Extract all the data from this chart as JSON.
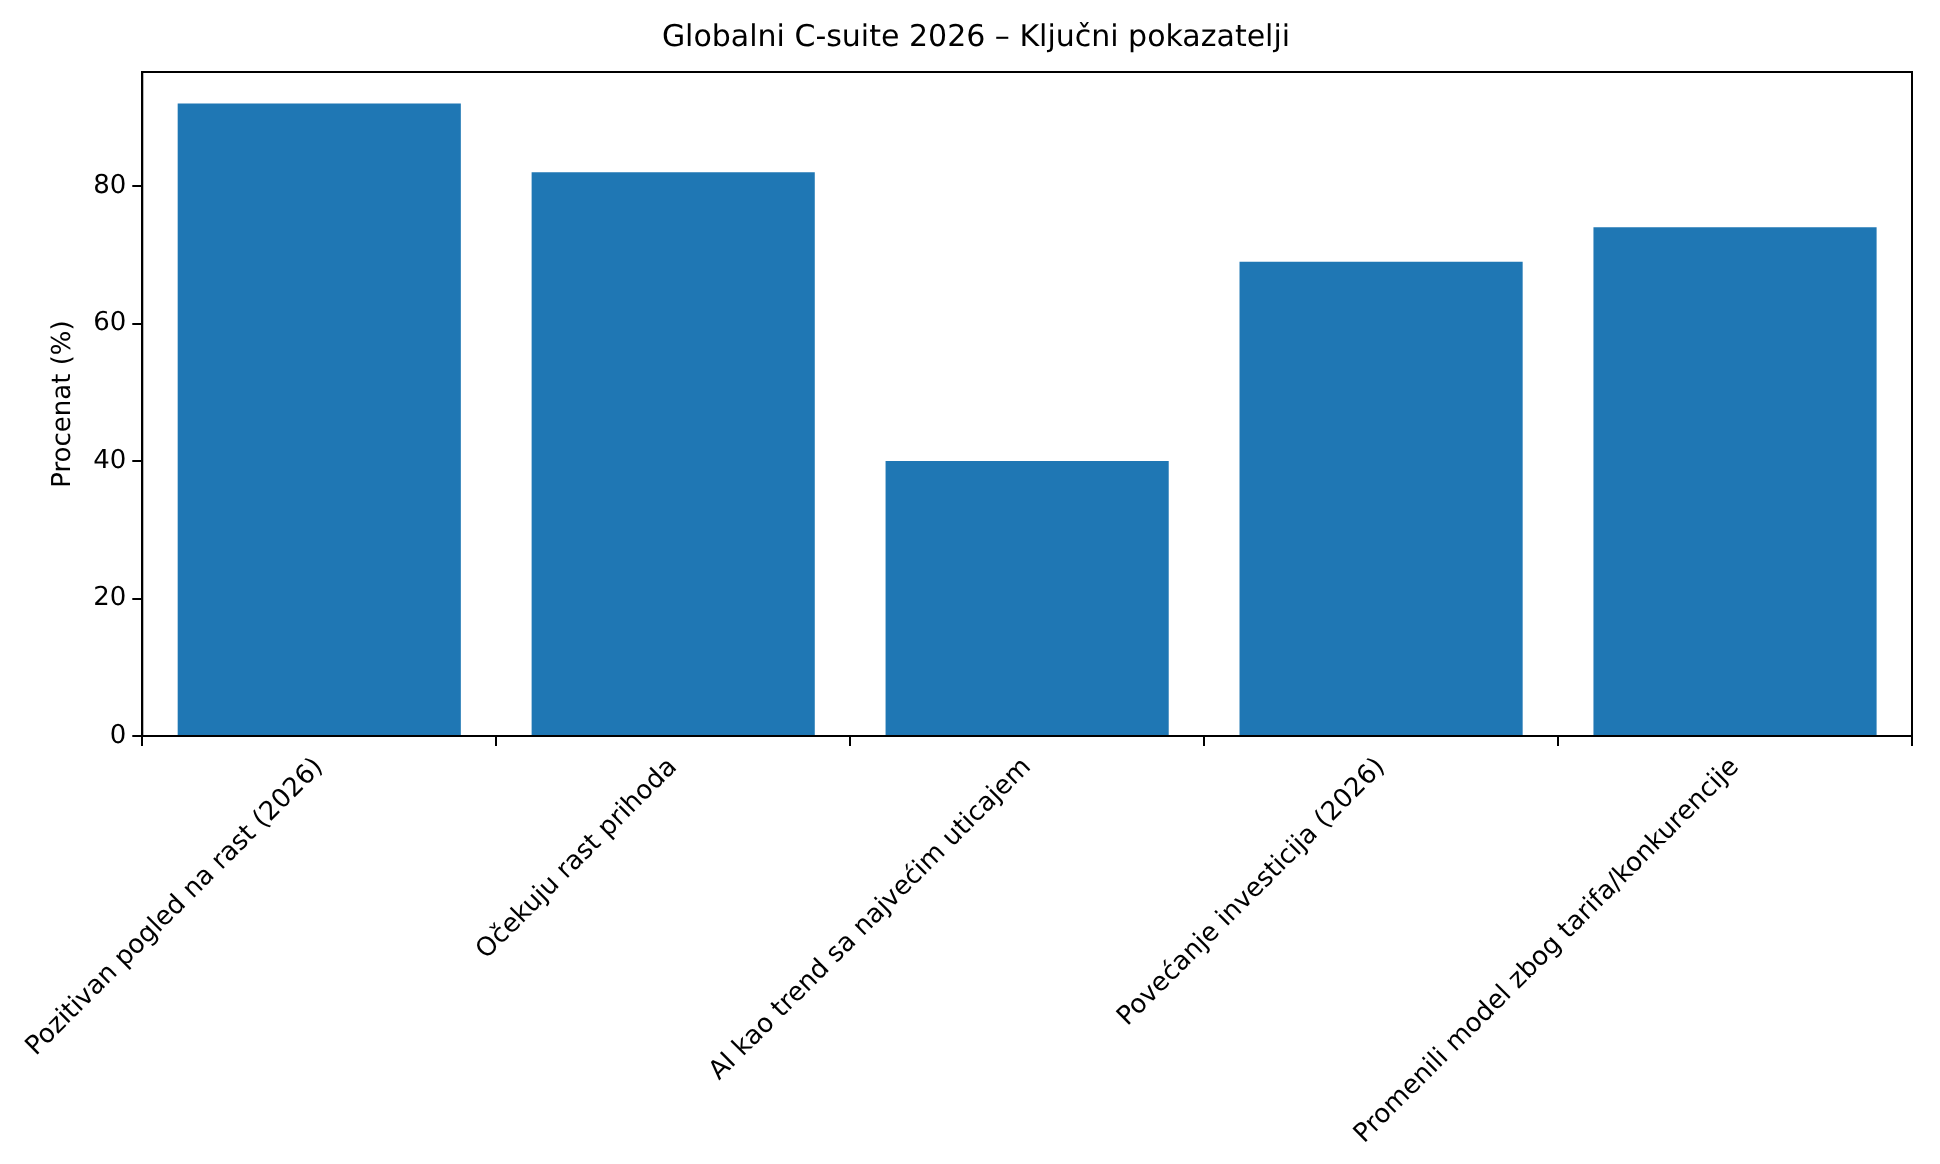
{
  "chart_data": {
    "type": "bar",
    "title": "Globalni C-suite 2026 – Ključni pokazatelji",
    "ylabel": "Procenat (%)",
    "categories": [
      "Pozitivan pogled na rast (2026)",
      "Očekuju rast prihoda",
      "AI kao trend sa najvećim uticajem",
      "Povećanje investicija (2026)",
      "Promenili model zbog tarifa/konkurencije"
    ],
    "values": [
      92,
      82,
      40,
      69,
      74
    ],
    "color": "#1f77b4",
    "ylim": [
      0,
      96.6
    ],
    "yticks": [
      0,
      20,
      40,
      60,
      80
    ],
    "grid": false,
    "legend": false
  }
}
